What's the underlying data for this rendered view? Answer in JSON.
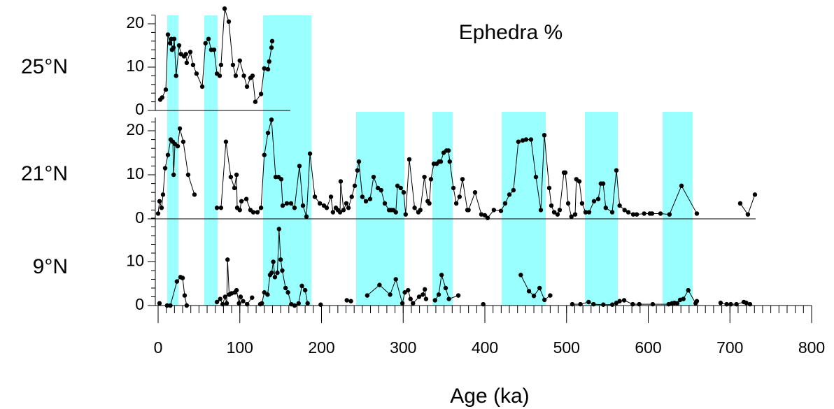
{
  "chart_data": {
    "type": "line",
    "title": "Ephedra %",
    "x_label": "Age (ka)",
    "xlim": [
      0,
      800
    ],
    "xticks": [
      0,
      100,
      200,
      300,
      400,
      500,
      600,
      700,
      800
    ],
    "shade_color": "#99ffff",
    "series": [
      {
        "name": "25°N",
        "color": "#000000",
        "ylim": [
          0,
          22
        ],
        "yticks": [
          0,
          10,
          20
        ],
        "shaded": [
          [
            11.1,
            24.8
          ],
          [
            56.5,
            72.8
          ],
          [
            128.5,
            187.6
          ]
        ],
        "x": [
          2.6,
          5,
          9.4,
          12,
          14.6,
          16.3,
          17,
          18.8,
          19.7,
          22,
          25.7,
          28,
          31.7,
          34,
          35,
          39.4,
          42.8,
          47,
          54,
          58,
          61.7,
          65,
          68.5,
          72,
          75.4,
          77,
          81.4,
          86.5,
          91.6,
          95,
          100,
          105,
          108.8,
          113,
          115.6,
          119,
          126,
          130,
          134.5,
          136,
          138.8,
          139.6
        ],
        "values": [
          2.5,
          3,
          4.8,
          17.5,
          15.5,
          16.5,
          14,
          14.5,
          16.5,
          8,
          15,
          13,
          12.5,
          13,
          11,
          13.5,
          10.5,
          8.5,
          5.5,
          15.5,
          16.5,
          14,
          14,
          8.5,
          8,
          10.5,
          23.5,
          20.5,
          10.5,
          8,
          11.5,
          8,
          5.5,
          7.5,
          8,
          2,
          3.8,
          9.7,
          9.5,
          11.3,
          14.5,
          16
        ]
      },
      {
        "name": "21°N",
        "color": "#000000",
        "ylim": [
          0,
          23
        ],
        "yticks": [
          0,
          10,
          20
        ],
        "shaded": [
          [
            11.1,
            24.8
          ],
          [
            56.5,
            72.8
          ],
          [
            128.5,
            187.6
          ],
          [
            242.4,
            301.5
          ],
          [
            335.8,
            360.6
          ],
          [
            420.6,
            474.5
          ],
          [
            522.5,
            562.7
          ],
          [
            617.6,
            654.4
          ]
        ],
        "x": [
          0,
          1.7,
          4.3,
          6,
          8.6,
          12,
          15.4,
          18,
          19,
          20.6,
          24,
          26.6,
          30.8,
          36.8,
          44.5,
          null,
          72,
          77,
          83,
          89,
          93.4,
          96,
          96.8,
          100,
          102,
          108,
          113,
          116.5,
          121.6,
          126,
          130,
          134.5,
          138.8,
          143.9,
          147.3,
          150.7,
          152.5,
          157.6,
          162.7,
          167,
          173,
          177.3,
          181.6,
          185.9,
          191.9,
          198,
          203,
          206.4,
          211.6,
          214,
          217.6,
          220,
          222.7,
          223.5,
          227,
          230.4,
          233,
          237,
          240.7,
          244,
          245.8,
          250,
          254.4,
          259.5,
          263.8,
          269,
          273,
          277.5,
          282.7,
          285,
          287.8,
          291,
          293,
          297,
          300.6,
          303,
          307.5,
          314,
          318.6,
          321,
          326,
          330,
          332,
          334,
          337.5,
          341,
          344,
          346,
          349.5,
          353,
          355.5,
          357,
          361.5,
          365,
          369,
          372.6,
          378.6,
          380,
          388,
          395.7,
          400,
          403.4,
          411,
          419.7,
          424.8,
          430,
          435,
          441,
          446.3,
          450.5,
          456.5,
          462.5,
          468.5,
          472.8,
          478.8,
          481.4,
          484.8,
          489,
          491.6,
          496.8,
          498.5,
          502,
          506,
          510.5,
          512,
          515.6,
          519,
          523.3,
          527.6,
          533.6,
          538.8,
          542,
          544.8,
          548,
          555.9,
          561,
          565,
          571,
          575.6,
          581.6,
          585.9,
          595,
          602,
          604.7,
          615,
          626,
          640.7,
          659.5,
          null,
          712.6,
          722,
          730.6
        ],
        "values": [
          1.2,
          4,
          2.5,
          5.5,
          11.5,
          14.5,
          18,
          17.5,
          10,
          17,
          16.5,
          20.5,
          17.5,
          10,
          5.5,
          null,
          2.5,
          2.5,
          17.5,
          9.5,
          7,
          10,
          2.5,
          2,
          4,
          4.5,
          2,
          1.5,
          1.5,
          2.5,
          14.5,
          19.5,
          22.5,
          9.5,
          9.5,
          9,
          3,
          3.5,
          3.5,
          2.5,
          12,
          3,
          0.5,
          14.8,
          5,
          3.5,
          3,
          2.5,
          5,
          1.5,
          2.5,
          2,
          1.5,
          8.5,
          2,
          3.5,
          2.5,
          5,
          7.5,
          11,
          13,
          5,
          4,
          4.5,
          9.5,
          7,
          6.5,
          3.5,
          2,
          2,
          2,
          1.5,
          7.5,
          7,
          6,
          1,
          13.5,
          2.5,
          1.5,
          2,
          9.5,
          4,
          3.5,
          9,
          12.5,
          12.5,
          13,
          13,
          15,
          15.5,
          15.5,
          13,
          7,
          3.5,
          5,
          9,
          2,
          2,
          6,
          1,
          0.8,
          0.2,
          2,
          1.8,
          3.5,
          5.5,
          6.5,
          17.5,
          17.8,
          18,
          18,
          9.5,
          2,
          19,
          7,
          3,
          1.5,
          1,
          2,
          10.5,
          10.5,
          3.5,
          0.5,
          1,
          9,
          8.5,
          3.5,
          1.5,
          1.5,
          4,
          4.5,
          8,
          8,
          2.5,
          1.5,
          11,
          3,
          2,
          1.5,
          1,
          1,
          1.2,
          1.2,
          1.2,
          1.2,
          1,
          7.5,
          1.2,
          null,
          3.5,
          1,
          5.5
        ]
      },
      {
        "name": "9°N",
        "color": "#000000",
        "ylim": [
          0,
          20
        ],
        "yticks": [
          0,
          10
        ],
        "shaded": [
          [
            11.1,
            24.8
          ],
          [
            56.5,
            72.8
          ],
          [
            128.5,
            187.6
          ],
          [
            242.4,
            301.5
          ],
          [
            335.8,
            360.6
          ],
          [
            420.6,
            474.5
          ],
          [
            522.5,
            562.7
          ],
          [
            617.6,
            654.4
          ]
        ],
        "x": [
          1.7,
          null,
          11,
          15,
          23,
          27.4,
          30,
          32.5,
          35,
          null,
          72,
          76,
          79,
          82,
          84,
          85,
          87,
          90,
          94,
          96,
          99,
          101,
          104,
          109,
          115,
          null,
          125,
          127,
          130,
          134,
          137,
          139,
          141,
          143,
          146,
          148,
          150,
          152,
          156,
          159,
          163,
          167,
          172,
          176,
          180,
          183,
          null,
          199,
          null,
          231,
          236,
          null,
          256,
          271,
          284,
          291,
          299,
          302,
          306,
          309,
          312,
          319.5,
          324,
          326.5,
          328,
          null,
          339,
          343.5,
          347,
          352,
          356,
          367.5,
          null,
          398,
          null,
          444,
          454,
          460,
          467,
          473,
          480,
          null,
          507,
          517,
          527,
          533,
          545,
          556,
          561,
          565,
          570.5,
          581,
          589,
          605.5,
          625,
          629,
          632,
          635.5,
          639,
          643,
          649,
          658,
          659.5,
          null,
          688.6,
          696,
          701,
          708,
          717,
          720,
          724.6
        ],
        "values": [
          0.5,
          null,
          0,
          0,
          5.5,
          6.5,
          6.3,
          2.3,
          0,
          null,
          0.8,
          1.5,
          0.3,
          2,
          0.5,
          10.5,
          2.5,
          2.8,
          3,
          3.5,
          0.5,
          2,
          1,
          0.3,
          1.8,
          null,
          0.3,
          0.5,
          3,
          2.5,
          7,
          7.5,
          10,
          6.5,
          7.5,
          17.5,
          10.5,
          8,
          4,
          3,
          0.3,
          0,
          0.5,
          4.5,
          3.5,
          0.5,
          null,
          0.2,
          null,
          1.2,
          1,
          null,
          2.3,
          4.7,
          2.5,
          6,
          0.5,
          3,
          3.5,
          1.5,
          0.5,
          2,
          2.5,
          3.7,
          1.5,
          null,
          1.2,
          2.5,
          7,
          4,
          1.5,
          2.3,
          null,
          0.3,
          null,
          7,
          3.3,
          2.2,
          4,
          1.3,
          2.3,
          null,
          0.3,
          0.3,
          0.8,
          0.3,
          0.2,
          0.2,
          0.6,
          1,
          1.2,
          0.3,
          0.3,
          0.3,
          0.3,
          0.5,
          0.6,
          0.5,
          1.3,
          1.5,
          3.5,
          0.5,
          1,
          null,
          0.6,
          0.3,
          0.3,
          0.3,
          0.8,
          0.6,
          0.3
        ]
      }
    ]
  }
}
